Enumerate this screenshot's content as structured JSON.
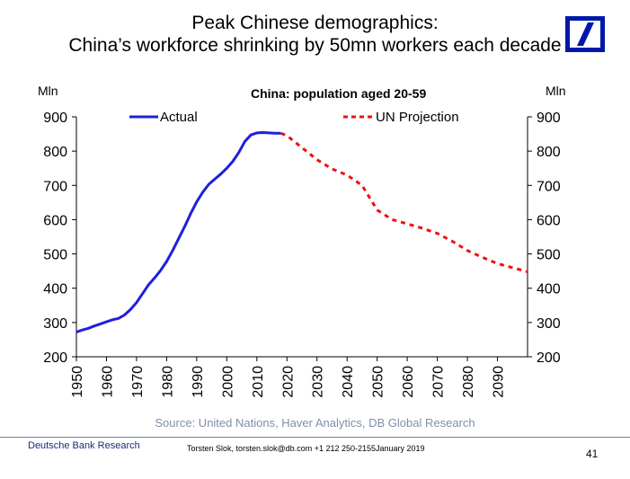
{
  "header": {
    "title_line1": "Peak Chinese demographics:",
    "title_line2": "China’s workforce shrinking by 50mn workers each decade",
    "logo": "deutsche-bank-logo"
  },
  "chart_data": {
    "type": "line",
    "title": "China: population aged 20-59",
    "ylabel_left": "Mln",
    "ylabel_right": "Mln",
    "ylim": [
      200,
      900
    ],
    "yticks": [
      200,
      300,
      400,
      500,
      600,
      700,
      800,
      900
    ],
    "xlim": [
      1950,
      2100
    ],
    "xticks": [
      1950,
      1960,
      1970,
      1980,
      1990,
      2000,
      2010,
      2020,
      2030,
      2040,
      2050,
      2060,
      2070,
      2080,
      2090
    ],
    "legend_position": "top",
    "series": [
      {
        "name": "Actual",
        "color": "#1f1fdd",
        "style": "solid",
        "x": [
          1950,
          1952,
          1954,
          1956,
          1958,
          1960,
          1962,
          1964,
          1966,
          1968,
          1970,
          1972,
          1974,
          1976,
          1978,
          1980,
          1982,
          1984,
          1986,
          1988,
          1990,
          1992,
          1994,
          1996,
          1998,
          2000,
          2002,
          2004,
          2006,
          2008,
          2010,
          2012,
          2014,
          2016,
          2018
        ],
        "y": [
          272,
          278,
          283,
          290,
          296,
          302,
          308,
          312,
          322,
          338,
          358,
          384,
          410,
          430,
          452,
          478,
          510,
          545,
          580,
          618,
          652,
          680,
          703,
          718,
          733,
          750,
          770,
          796,
          828,
          847,
          853,
          854,
          853,
          852,
          852
        ]
      },
      {
        "name": "UN Projection",
        "color": "#ee1111",
        "style": "dashed",
        "x": [
          2018,
          2020,
          2025,
          2030,
          2035,
          2040,
          2045,
          2050,
          2055,
          2060,
          2065,
          2070,
          2075,
          2080,
          2085,
          2090,
          2095,
          2100
        ],
        "y": [
          852,
          845,
          810,
          775,
          748,
          730,
          700,
          628,
          600,
          588,
          575,
          560,
          537,
          510,
          490,
          472,
          460,
          448
        ]
      }
    ]
  },
  "source": "Source: United Nations, Haver Analytics, DB Global Research",
  "footer": {
    "left": "Deutsche Bank Research",
    "middle": "Torsten Slok, torsten.slok@db.com  +1 212 250-2155",
    "date": "January 2019",
    "page": "41"
  }
}
